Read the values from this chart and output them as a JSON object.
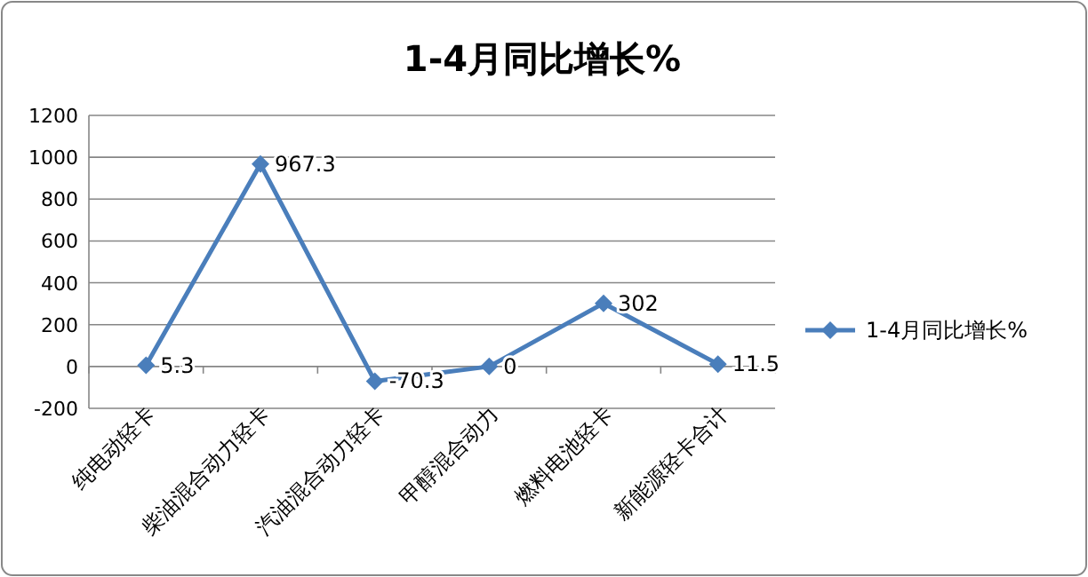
{
  "chart_data": {
    "type": "line",
    "title": "1-4月同比增长%",
    "categories": [
      "纯电动轻卡",
      "柴油混合动力轻卡",
      "汽油混合动力轻卡",
      "甲醇混合动力",
      "燃料电池轻卡",
      "新能源轻卡合计"
    ],
    "series": [
      {
        "name": "1-4月同比增长%",
        "color": "#4a7ebb",
        "values": [
          5.3,
          967.3,
          -70.3,
          0,
          302,
          11.5
        ]
      }
    ],
    "ylim": [
      -200,
      1200
    ],
    "yticks": [
      -200,
      0,
      200,
      400,
      600,
      800,
      1000,
      1200
    ],
    "grid": "y",
    "legend": "right",
    "marker": "diamond",
    "line_style": "solid",
    "data_labels": true
  }
}
